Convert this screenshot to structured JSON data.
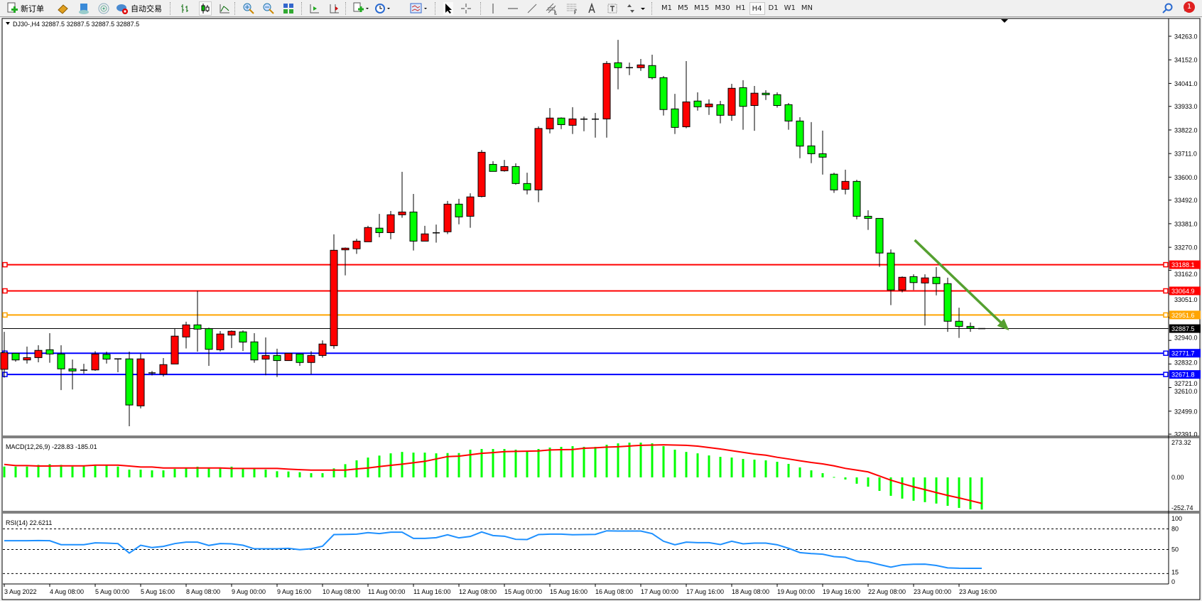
{
  "toolbar": {
    "new_order": "新订单",
    "auto_trading": "自动交易",
    "timeframes": [
      "M1",
      "M5",
      "M15",
      "M30",
      "H1",
      "H4",
      "D1",
      "W1",
      "MN"
    ],
    "active_timeframe": "H4",
    "notification_count": "1",
    "icons": [
      "new-order-icon",
      "market-watch-icon",
      "navigator-icon",
      "signals-icon",
      "auto-trading-icon",
      "bar-chart-icon",
      "candlestick-icon",
      "line-chart-icon",
      "zoom-in-icon",
      "zoom-out-icon",
      "tile-windows-icon",
      "auto-scroll-icon",
      "chart-shift-icon",
      "indicators-icon",
      "periods-icon",
      "templates-icon",
      "cursor-icon",
      "crosshair-icon",
      "vertical-line-icon",
      "horizontal-line-icon",
      "trendline-icon",
      "equidistant-channel-icon",
      "fibonacci-icon",
      "text-icon",
      "text-label-icon",
      "arrows-icon",
      "search-icon",
      "notification-icon"
    ]
  },
  "chart": {
    "title": "DJ30-,H4  32887.5 32887.5 32887.5 32887.5",
    "bull_color": "#ff0000",
    "bear_color": "#00ff00"
  },
  "chart_data": {
    "type": "candlestick",
    "symbol": "DJ30-",
    "timeframe": "H4",
    "ylim": [
      32391,
      34263
    ],
    "price_ticks": [
      "34263.0",
      "34152.0",
      "34041.0",
      "33933.0",
      "33822.0",
      "33711.0",
      "33600.0",
      "33492.0",
      "33381.0",
      "33270.0",
      "33162.0",
      "33051.0",
      "32940.0",
      "32832.0",
      "32721.0",
      "32610.0",
      "32499.0",
      "32391.0"
    ],
    "time_labels": [
      "3 Aug 2022",
      "4 Aug 08:00",
      "5 Aug 00:00",
      "5 Aug 16:00",
      "8 Aug 08:00",
      "9 Aug 00:00",
      "9 Aug 16:00",
      "10 Aug 08:00",
      "11 Aug 00:00",
      "11 Aug 16:00",
      "12 Aug 08:00",
      "15 Aug 00:00",
      "15 Aug 16:00",
      "16 Aug 08:00",
      "17 Aug 00:00",
      "17 Aug 16:00",
      "18 Aug 08:00",
      "19 Aug 00:00",
      "19 Aug 16:00",
      "22 Aug 08:00",
      "23 Aug 00:00",
      "23 Aug 16:00"
    ],
    "ohlc": [
      [
        32696,
        32872,
        32657,
        32774
      ],
      [
        32771,
        32771,
        32732,
        32740
      ],
      [
        32740,
        32803,
        32723,
        32751
      ],
      [
        32751,
        32809,
        32729,
        32785
      ],
      [
        32788,
        32866,
        32727,
        32768
      ],
      [
        32768,
        32809,
        32598,
        32698
      ],
      [
        32698,
        32742,
        32601,
        32688
      ],
      [
        32692,
        32722,
        32676,
        32689
      ],
      [
        32693,
        32781,
        32689,
        32768
      ],
      [
        32766,
        32779,
        32723,
        32744
      ],
      [
        32745,
        32745,
        32682,
        32744
      ],
      [
        32745,
        32779,
        32428,
        32528
      ],
      [
        32524,
        32771,
        32512,
        32745
      ],
      [
        32677,
        32688,
        32667,
        32679
      ],
      [
        32673,
        32749,
        32662,
        32718
      ],
      [
        32721,
        32887,
        32721,
        32852
      ],
      [
        32848,
        32920,
        32794,
        32905
      ],
      [
        32905,
        33065,
        32779,
        32885
      ],
      [
        32887,
        32892,
        32712,
        32790
      ],
      [
        32788,
        32876,
        32780,
        32862
      ],
      [
        32857,
        32879,
        32796,
        32875
      ],
      [
        32872,
        32879,
        32782,
        32824
      ],
      [
        32825,
        32866,
        32727,
        32740
      ],
      [
        32744,
        32846,
        32668,
        32761
      ],
      [
        32761,
        32793,
        32660,
        32737
      ],
      [
        32737,
        32771,
        32737,
        32771
      ],
      [
        32768,
        32768,
        32712,
        32728
      ],
      [
        32728,
        32781,
        32673,
        32761
      ],
      [
        32761,
        32832,
        32751,
        32815
      ],
      [
        32807,
        33331,
        32793,
        33256
      ],
      [
        33258,
        33269,
        33138,
        33266
      ],
      [
        33263,
        33310,
        33239,
        33299
      ],
      [
        33296,
        33371,
        33296,
        33363
      ],
      [
        33360,
        33427,
        33317,
        33339
      ],
      [
        33339,
        33441,
        33308,
        33423
      ],
      [
        33423,
        33625,
        33409,
        33436
      ],
      [
        33436,
        33521,
        33255,
        33299
      ],
      [
        33299,
        33371,
        33299,
        33333
      ],
      [
        33338,
        33377,
        33292,
        33337
      ],
      [
        33343,
        33488,
        33332,
        33473
      ],
      [
        33473,
        33498,
        33378,
        33413
      ],
      [
        33416,
        33524,
        33362,
        33507
      ],
      [
        33509,
        33728,
        33505,
        33717
      ],
      [
        33660,
        33675,
        33627,
        33627
      ],
      [
        33630,
        33681,
        33626,
        33650
      ],
      [
        33650,
        33665,
        33565,
        33570
      ],
      [
        33570,
        33621,
        33519,
        33540
      ],
      [
        33540,
        33839,
        33482,
        33829
      ],
      [
        33827,
        33925,
        33806,
        33878
      ],
      [
        33878,
        33881,
        33826,
        33847
      ],
      [
        33844,
        33929,
        33803,
        33874
      ],
      [
        33873,
        33885,
        33816,
        33872
      ],
      [
        33872,
        33902,
        33786,
        33873
      ],
      [
        33874,
        34146,
        33786,
        34135
      ],
      [
        34138,
        34246,
        34013,
        34115
      ],
      [
        34115,
        34139,
        34080,
        34114
      ],
      [
        34115,
        34156,
        34100,
        34128
      ],
      [
        34125,
        34176,
        34060,
        34068
      ],
      [
        34068,
        34076,
        33890,
        33918
      ],
      [
        33921,
        33992,
        33803,
        33834
      ],
      [
        33837,
        34146,
        33830,
        33954
      ],
      [
        33958,
        33999,
        33913,
        33931
      ],
      [
        33931,
        33966,
        33893,
        33944
      ],
      [
        33941,
        33959,
        33853,
        33891
      ],
      [
        33891,
        34039,
        33865,
        34018
      ],
      [
        34021,
        34056,
        33823,
        33933
      ],
      [
        33937,
        34029,
        33818,
        33995
      ],
      [
        33995,
        34009,
        33963,
        33988
      ],
      [
        33988,
        33999,
        33927,
        33937
      ],
      [
        33941,
        33949,
        33823,
        33864
      ],
      [
        33864,
        33882,
        33689,
        33746
      ],
      [
        33747,
        33859,
        33666,
        33710
      ],
      [
        33710,
        33819,
        33612,
        33694
      ],
      [
        33614,
        33621,
        33526,
        33540
      ],
      [
        33543,
        33635,
        33519,
        33580
      ],
      [
        33580,
        33588,
        33402,
        33416
      ],
      [
        33416,
        33444,
        33352,
        33406
      ],
      [
        33406,
        33406,
        33178,
        33243
      ],
      [
        33243,
        33260,
        32998,
        33069
      ],
      [
        33069,
        33133,
        33058,
        33129
      ],
      [
        33132,
        33143,
        33069,
        33104
      ],
      [
        33102,
        33143,
        32902,
        33126
      ],
      [
        33129,
        33177,
        33044,
        33099
      ],
      [
        33099,
        33127,
        32872,
        32922
      ],
      [
        32922,
        32986,
        32844,
        32898
      ],
      [
        32898,
        32916,
        32872,
        32889
      ],
      [
        32887.5,
        32887.5,
        32887.5,
        32887.5
      ]
    ],
    "current_price": {
      "label": "32887.5",
      "value": 32887.5,
      "color": "#000000"
    },
    "levels": [
      {
        "label": "33188.1",
        "value": 33188.1,
        "color": "#ff0000"
      },
      {
        "label": "33064.9",
        "value": 33064.9,
        "color": "#ff0000"
      },
      {
        "label": "32951.6",
        "value": 32951.6,
        "color": "#ffa500"
      },
      {
        "label": "32771.7",
        "value": 32771.7,
        "color": "#0000ff"
      },
      {
        "label": "32671.8",
        "value": 32671.8,
        "color": "#0000ff"
      }
    ],
    "trend_arrow_color": "#55a030",
    "macd": {
      "title": "MACD(12,26,9) -228.83 -185.01",
      "ylim": [
        -252.74,
        273.32
      ],
      "ticks": [
        "273.32",
        "0.00",
        "-252.74"
      ],
      "hist_color": "#00ff00",
      "signal_color": "#ff0000",
      "main": [
        77,
        77,
        77,
        89,
        94,
        89,
        77,
        81,
        84,
        84,
        77,
        55,
        55,
        50,
        50,
        60,
        64,
        76,
        71,
        71,
        76,
        64,
        60,
        55,
        44,
        42,
        37,
        30,
        30,
        64,
        94,
        121,
        141,
        155,
        171,
        181,
        176,
        176,
        171,
        173,
        173,
        197,
        202,
        202,
        202,
        197,
        188,
        202,
        212,
        217,
        222,
        217,
        217,
        232,
        242,
        247,
        247,
        242,
        222,
        197,
        181,
        171,
        156,
        146,
        141,
        131,
        126,
        121,
        111,
        96,
        71,
        50,
        30,
        3,
        -15,
        -45,
        -66,
        -96,
        -131,
        -151,
        -166,
        -176,
        -186,
        -202,
        -217,
        -227,
        -228.83
      ],
      "signal": [
        92,
        84,
        84,
        81,
        81,
        82,
        82,
        82,
        87,
        87,
        87,
        81,
        74,
        74,
        67,
        67,
        67,
        67,
        67,
        67,
        64,
        64,
        64,
        64,
        64,
        59,
        55,
        52,
        52,
        52,
        52,
        60,
        67,
        77,
        86,
        94,
        104,
        114,
        131,
        148,
        151,
        161,
        171,
        176,
        183,
        185,
        186,
        188,
        195,
        197,
        198,
        207,
        210,
        215,
        218,
        223,
        228,
        230,
        232,
        230,
        228,
        222,
        212,
        202,
        190,
        178,
        166,
        158,
        143,
        131,
        118,
        106,
        96,
        82,
        64,
        52,
        39,
        10,
        -20,
        -44,
        -67,
        -87,
        -108,
        -128,
        -146,
        -165,
        -185.01
      ]
    },
    "rsi": {
      "title": "RSI(14) 22.6211",
      "ticks": [
        "100",
        "80",
        "50",
        "15",
        "0"
      ],
      "levels": [
        80,
        50,
        15
      ],
      "color": "#1e90ff",
      "values": [
        62.8,
        62.8,
        62.8,
        63,
        62.8,
        57,
        57,
        57,
        59.7,
        59.3,
        58.6,
        44.8,
        56.2,
        52.8,
        54.5,
        58.6,
        60.7,
        60.7,
        55.9,
        58.6,
        58.3,
        56.2,
        51,
        51,
        51,
        51.7,
        49.7,
        51,
        54.8,
        71.7,
        72,
        72.4,
        74.5,
        73.1,
        75.2,
        75.2,
        66.2,
        66.2,
        67.2,
        71.4,
        66.9,
        69,
        75.5,
        70.3,
        69.3,
        64.8,
        64.5,
        71.7,
        72.4,
        72.4,
        71.4,
        71.7,
        72,
        77.2,
        76.9,
        76.9,
        76.9,
        73.1,
        62,
        56.9,
        60.7,
        60,
        60,
        57.2,
        62,
        58.3,
        59.3,
        59.3,
        56.9,
        51.7,
        45.5,
        44.1,
        43.1,
        39.7,
        38.6,
        33.3,
        32,
        28,
        24.3,
        27.7,
        28.5,
        28.7,
        26.7,
        23.3,
        22.7,
        22.6,
        22.6211
      ]
    }
  }
}
